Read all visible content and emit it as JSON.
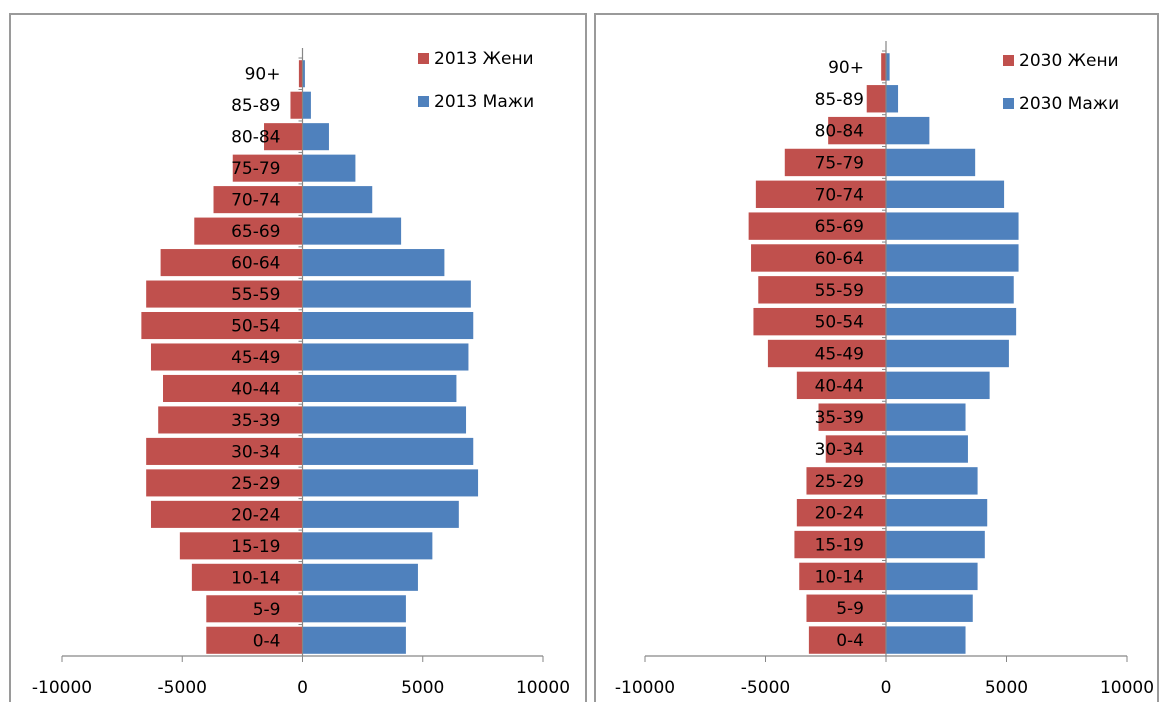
{
  "chart_data": [
    {
      "type": "bar",
      "orientation": "horizontal",
      "stacked": true,
      "categories": [
        "0-4",
        "5-9",
        "10-14",
        "15-19",
        "20-24",
        "25-29",
        "30-34",
        "35-39",
        "40-44",
        "45-49",
        "50-54",
        "55-59",
        "60-64",
        "65-69",
        "70-74",
        "75-79",
        "80-84",
        "85-89",
        "90+"
      ],
      "series": [
        {
          "name": "2013 Жени",
          "color": "#c0504d",
          "values": [
            -4000,
            -4000,
            -4600,
            -5100,
            -6300,
            -6500,
            -6500,
            -6000,
            -5800,
            -6300,
            -6700,
            -6500,
            -5900,
            -4500,
            -3700,
            -2900,
            -1600,
            -500,
            -150
          ]
        },
        {
          "name": "2013 Мажи",
          "color": "#4f81bd",
          "values": [
            4300,
            4300,
            4800,
            5400,
            6500,
            7300,
            7100,
            6800,
            6400,
            6900,
            7100,
            7000,
            5900,
            4100,
            2900,
            2200,
            1100,
            350,
            100
          ]
        }
      ],
      "xlim": [
        -10000,
        10000
      ],
      "xticks": [
        "-10000",
        "-5000",
        "0",
        "5000",
        "10000"
      ],
      "legend": "top-right",
      "grid": false
    },
    {
      "type": "bar",
      "orientation": "horizontal",
      "stacked": true,
      "categories": [
        "0-4",
        "5-9",
        "10-14",
        "15-19",
        "20-24",
        "25-29",
        "30-34",
        "35-39",
        "40-44",
        "45-49",
        "50-54",
        "55-59",
        "60-64",
        "65-69",
        "70-74",
        "75-79",
        "80-84",
        "85-89",
        "90+"
      ],
      "series": [
        {
          "name": "2030 Жени",
          "color": "#c0504d",
          "values": [
            -3200,
            -3300,
            -3600,
            -3800,
            -3700,
            -3300,
            -2500,
            -2800,
            -3700,
            -4900,
            -5500,
            -5300,
            -5600,
            -5700,
            -5400,
            -4200,
            -2400,
            -800,
            -200
          ]
        },
        {
          "name": "2030 Мажи",
          "color": "#4f81bd",
          "values": [
            3300,
            3600,
            3800,
            4100,
            4200,
            3800,
            3400,
            3300,
            4300,
            5100,
            5400,
            5300,
            5500,
            5500,
            4900,
            3700,
            1800,
            500,
            150
          ]
        }
      ],
      "xlim": [
        -10000,
        10000
      ],
      "xticks": [
        "-10000",
        "-5000",
        "0",
        "5000",
        "10000"
      ],
      "legend": "top-right",
      "grid": false
    }
  ]
}
